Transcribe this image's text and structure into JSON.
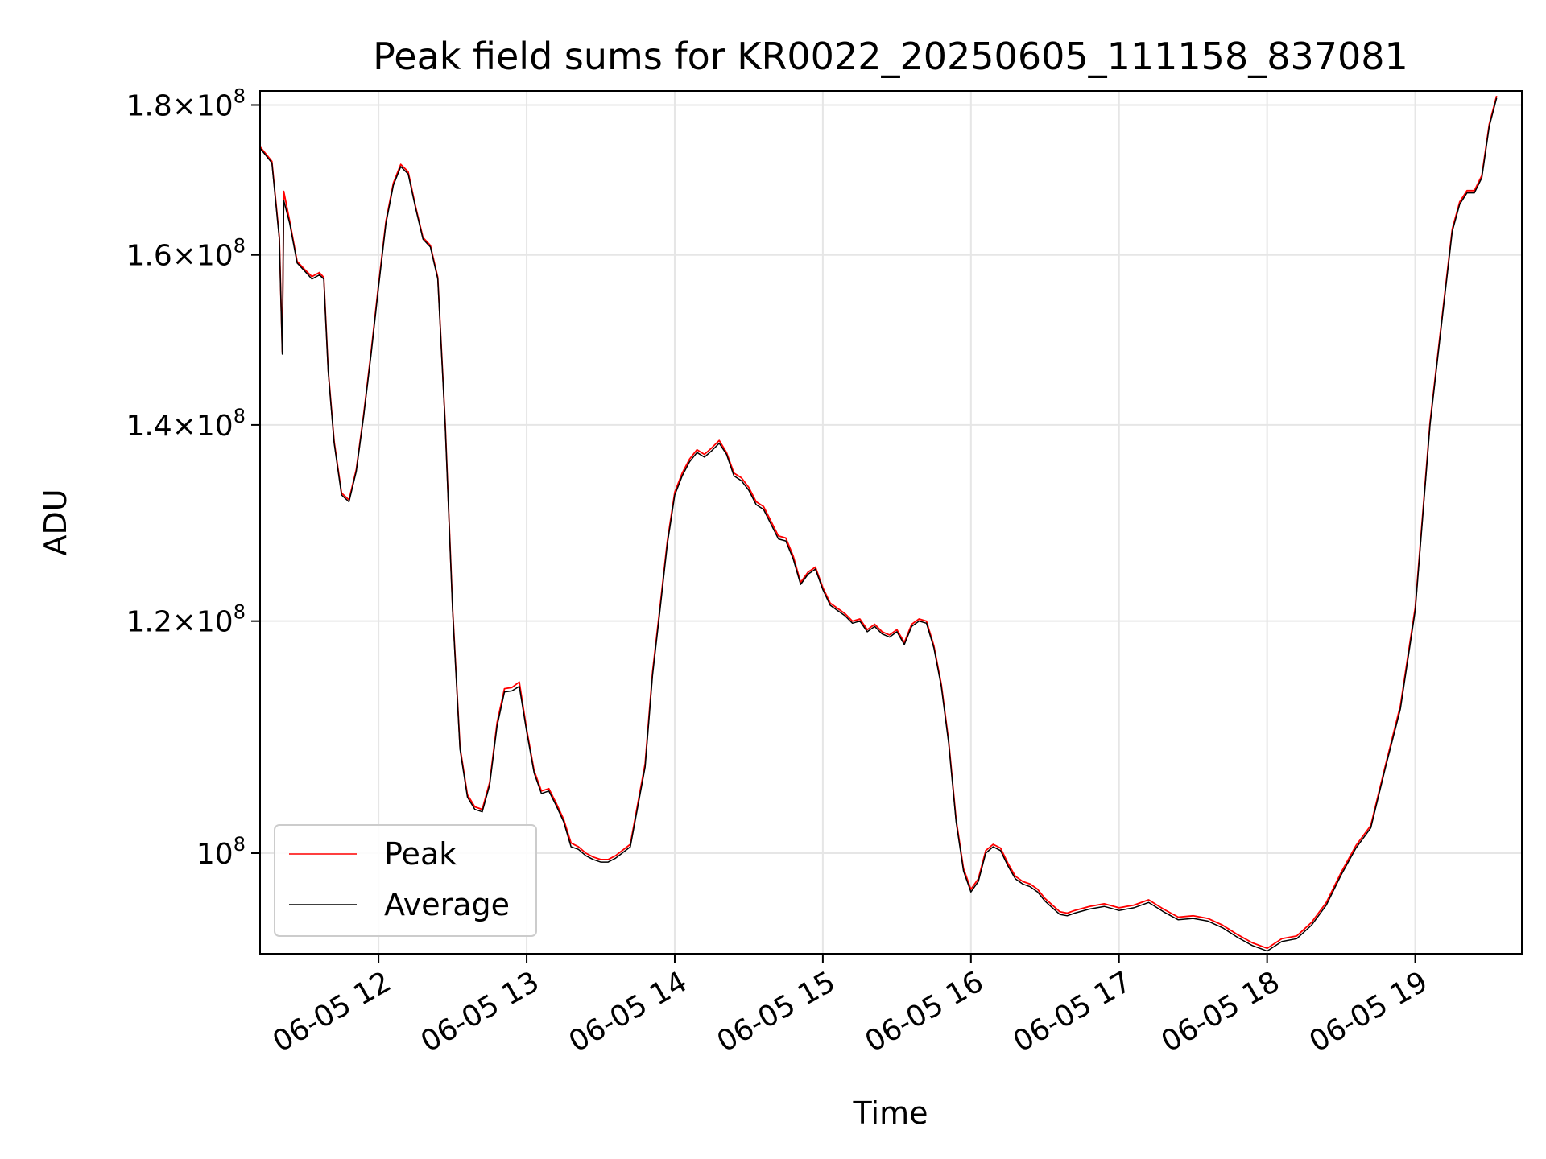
{
  "chart_data": {
    "type": "line",
    "title": "Peak field sums for KR0022_20250605_111158_837081",
    "xlabel": "Time",
    "ylabel": "ADU",
    "y_scale": "log",
    "x_unit": "hours",
    "xlim": [
      11.2,
      19.72
    ],
    "ylim": [
      92400000,
      182000000
    ],
    "x_ticks": [
      {
        "value": 12,
        "label": "06-05 12"
      },
      {
        "value": 13,
        "label": "06-05 13"
      },
      {
        "value": 14,
        "label": "06-05 14"
      },
      {
        "value": 15,
        "label": "06-05 15"
      },
      {
        "value": 16,
        "label": "06-05 16"
      },
      {
        "value": 17,
        "label": "06-05 17"
      },
      {
        "value": 18,
        "label": "06-05 18"
      },
      {
        "value": 19,
        "label": "06-05 19"
      }
    ],
    "y_ticks": [
      {
        "value": 100000000,
        "mantissa": "",
        "exponent": "8",
        "label": "10^8"
      },
      {
        "value": 120000000,
        "mantissa": "1.2",
        "exponent": "8",
        "label": "1.2×10^8"
      },
      {
        "value": 140000000,
        "mantissa": "1.4",
        "exponent": "8",
        "label": "1.4×10^8"
      },
      {
        "value": 160000000,
        "mantissa": "1.6",
        "exponent": "8",
        "label": "1.6×10^8"
      },
      {
        "value": 180000000,
        "mantissa": "1.8",
        "exponent": "8",
        "label": "1.8×10^8"
      }
    ],
    "grid": true,
    "legend_position": "bottom-left",
    "series": [
      {
        "name": "Peak",
        "color": "#ff0000"
      },
      {
        "name": "Average",
        "color": "#000000"
      }
    ],
    "x": [
      11.2,
      11.28,
      11.33,
      11.35,
      11.36,
      11.4,
      11.45,
      11.5,
      11.55,
      11.6,
      11.63,
      11.66,
      11.7,
      11.75,
      11.8,
      11.85,
      11.9,
      11.95,
      12,
      12.05,
      12.1,
      12.15,
      12.2,
      12.25,
      12.3,
      12.35,
      12.4,
      12.45,
      12.5,
      12.55,
      12.6,
      12.65,
      12.7,
      12.75,
      12.8,
      12.85,
      12.9,
      12.95,
      13,
      13.05,
      13.1,
      13.15,
      13.2,
      13.25,
      13.3,
      13.35,
      13.4,
      13.45,
      13.5,
      13.55,
      13.6,
      13.7,
      13.8,
      13.85,
      13.9,
      13.95,
      14,
      14.05,
      14.1,
      14.15,
      14.2,
      14.25,
      14.3,
      14.35,
      14.4,
      14.45,
      14.5,
      14.55,
      14.6,
      14.65,
      14.7,
      14.75,
      14.8,
      14.85,
      14.9,
      14.95,
      15,
      15.05,
      15.1,
      15.15,
      15.2,
      15.25,
      15.3,
      15.35,
      15.4,
      15.45,
      15.5,
      15.55,
      15.6,
      15.65,
      15.7,
      15.75,
      15.8,
      15.85,
      15.9,
      15.95,
      16,
      16.05,
      16.1,
      16.15,
      16.2,
      16.25,
      16.3,
      16.35,
      16.4,
      16.45,
      16.5,
      16.55,
      16.6,
      16.65,
      16.7,
      16.8,
      16.9,
      17,
      17.1,
      17.2,
      17.3,
      17.4,
      17.5,
      17.6,
      17.7,
      17.8,
      17.9,
      18,
      18.1,
      18.2,
      18.3,
      18.4,
      18.5,
      18.6,
      18.7,
      18.8,
      18.9,
      19,
      19.1,
      19.2,
      19.25,
      19.3,
      19.35,
      19.4,
      19.45,
      19.5,
      19.55,
      19.6,
      19.65,
      19.7
    ],
    "average": [
      174000000,
      172000000,
      162000000,
      148000000,
      167000000,
      164000000,
      159000000,
      158000000,
      157000000,
      157500000,
      157000000,
      146000000,
      138000000,
      132500000,
      131800000,
      135000000,
      141000000,
      148000000,
      156000000,
      164000000,
      169000000,
      171500000,
      170500000,
      166000000,
      162000000,
      161000000,
      157000000,
      140000000,
      121000000,
      108500000,
      104500000,
      103500000,
      103300000,
      105500000,
      110500000,
      113500000,
      113600000,
      114000000,
      110000000,
      106500000,
      104800000,
      105000000,
      103800000,
      102500000,
      100500000,
      100300000,
      99800000,
      99500000,
      99300000,
      99300000,
      99600000,
      100500000,
      107000000,
      115000000,
      121000000,
      127500000,
      132500000,
      134500000,
      136000000,
      137000000,
      136500000,
      137200000,
      138000000,
      136800000,
      134500000,
      134000000,
      133000000,
      131500000,
      131000000,
      129500000,
      128000000,
      127800000,
      126000000,
      123500000,
      124500000,
      125000000,
      123000000,
      121500000,
      121000000,
      120500000,
      119800000,
      120000000,
      119000000,
      119500000,
      118800000,
      118500000,
      119000000,
      117800000,
      119500000,
      120000000,
      119800000,
      117500000,
      114000000,
      109000000,
      102500000,
      98600000,
      97000000,
      97800000,
      100000000,
      100500000,
      100200000,
      99000000,
      98000000,
      97600000,
      97400000,
      97000000,
      96300000,
      95800000,
      95300000,
      95200000,
      95400000,
      95700000,
      95900000,
      95600000,
      95800000,
      96200000,
      95500000,
      94900000,
      95000000,
      94800000,
      94300000,
      93600000,
      93000000,
      92600000,
      93300000,
      93500000,
      94500000,
      96000000,
      98300000,
      100400000,
      102000000,
      107000000,
      112000000,
      121000000,
      140000000,
      155000000,
      163000000,
      166500000,
      168000000,
      168000000,
      170000000,
      177000000,
      181000000
    ],
    "peak": [
      174200000,
      172200000,
      162300000,
      148300000,
      168200000,
      164300000,
      159200000,
      158200000,
      157300000,
      157800000,
      157200000,
      146200000,
      138200000,
      132700000,
      132000000,
      135200000,
      141200000,
      148300000,
      156300000,
      164300000,
      169300000,
      171800000,
      170800000,
      166200000,
      162200000,
      161200000,
      157200000,
      140200000,
      121200000,
      108700000,
      104700000,
      103700000,
      103500000,
      105700000,
      110800000,
      113800000,
      113900000,
      114400000,
      110200000,
      106700000,
      105000000,
      105200000,
      104000000,
      102700000,
      100800000,
      100500000,
      100000000,
      99700000,
      99500000,
      99500000,
      99800000,
      100700000,
      107300000,
      115300000,
      121300000,
      127800000,
      132800000,
      134800000,
      136300000,
      137300000,
      136800000,
      137500000,
      138300000,
      137000000,
      134800000,
      134300000,
      133300000,
      131800000,
      131300000,
      129800000,
      128300000,
      128100000,
      126300000,
      123700000,
      124700000,
      125200000,
      123200000,
      121700000,
      121200000,
      120700000,
      120000000,
      120200000,
      119200000,
      119700000,
      119000000,
      118700000,
      119200000,
      118000000,
      119700000,
      120200000,
      120000000,
      117700000,
      114200000,
      109200000,
      102700000,
      98800000,
      97200000,
      98000000,
      100200000,
      100700000,
      100400000,
      99200000,
      98200000,
      97800000,
      97600000,
      97200000,
      96500000,
      96000000,
      95500000,
      95400000,
      95600000,
      95900000,
      96100000,
      95800000,
      96000000,
      96400000,
      95700000,
      95100000,
      95200000,
      95000000,
      94500000,
      93800000,
      93200000,
      92800000,
      93500000,
      93700000,
      94700000,
      96200000,
      98500000,
      100600000,
      102200000,
      107200000,
      112300000,
      121300000,
      140300000,
      155300000,
      163300000,
      166800000,
      168300000,
      168300000,
      170300000,
      177300000,
      181300000
    ]
  }
}
